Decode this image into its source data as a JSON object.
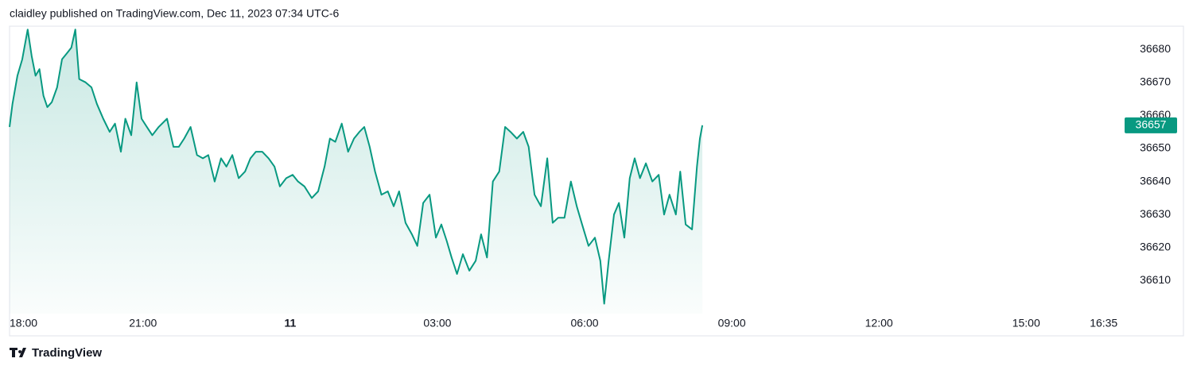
{
  "header": "claidley published on TradingView.com, Dec 11, 2023 07:34 UTC-6",
  "footer": "TradingView",
  "chart_data": {
    "type": "area",
    "color": "#089981",
    "x": [
      0.28,
      0.34,
      0.44,
      0.54,
      0.65,
      0.73,
      0.81,
      0.89,
      0.97,
      1.05,
      1.14,
      1.25,
      1.35,
      1.46,
      1.54,
      1.62,
      1.7,
      1.83,
      1.95,
      2.06,
      2.19,
      2.32,
      2.43,
      2.55,
      2.64,
      2.76,
      2.87,
      2.97,
      3.08,
      3.19,
      3.32,
      3.49,
      3.62,
      3.73,
      3.84,
      3.97,
      4.1,
      4.22,
      4.33,
      4.46,
      4.59,
      4.7,
      4.82,
      4.95,
      5.08,
      5.19,
      5.3,
      5.43,
      5.56,
      5.68,
      5.79,
      5.92,
      6.05,
      6.16,
      6.29,
      6.44,
      6.57,
      6.7,
      6.81,
      6.92,
      7.05,
      7.18,
      7.3,
      7.41,
      7.51,
      7.62,
      7.73,
      7.86,
      7.99,
      8.11,
      8.22,
      8.35,
      8.48,
      8.59,
      8.71,
      8.84,
      8.97,
      9.08,
      9.19,
      9.29,
      9.4,
      9.52,
      9.65,
      9.78,
      9.89,
      10.01,
      10.13,
      10.26,
      10.38,
      10.49,
      10.62,
      10.75,
      10.86,
      10.98,
      11.11,
      11.24,
      11.35,
      11.46,
      11.59,
      11.72,
      11.84,
      11.95,
      12.08,
      12.21,
      12.32,
      12.4,
      12.49,
      12.6,
      12.7,
      12.81,
      12.92,
      13.02,
      13.13,
      13.25,
      13.38,
      13.51,
      13.62,
      13.73,
      13.86,
      13.95,
      14.06,
      14.19,
      14.29,
      14.35,
      14.4
    ],
    "values": [
      36656.5,
      36663.5,
      36672,
      36677,
      36686,
      36678,
      36672,
      36674,
      36666,
      36662.5,
      36664,
      36668.5,
      36677,
      36679,
      36680.5,
      36686,
      36671,
      36670,
      36668.5,
      36663.5,
      36659,
      36655,
      36657.5,
      36649,
      36659,
      36654,
      36670,
      36659,
      36656.5,
      36654,
      36656.5,
      36659,
      36650.5,
      36650.5,
      36653,
      36656.5,
      36648,
      36647,
      36648,
      36640,
      36647,
      36644.5,
      36648,
      36641,
      36643,
      36647,
      36649,
      36649,
      36647,
      36644.5,
      36638.5,
      36641,
      36642,
      36640,
      36638.5,
      36635,
      36637,
      36644.5,
      36653,
      36652,
      36657.5,
      36649,
      36653,
      36655,
      36656.5,
      36650.5,
      36643,
      36636,
      36637,
      36632.5,
      36637,
      36627.5,
      36624,
      36620.5,
      36633.5,
      36636,
      36623,
      36627,
      36622,
      36617,
      36612,
      36618,
      36613,
      36616,
      36624,
      36617,
      36640,
      36643,
      36656.5,
      36655,
      36653,
      36655,
      36650.5,
      36636,
      36632.5,
      36647,
      36627.5,
      36629,
      36629,
      36640,
      36632.5,
      36627,
      36620.5,
      36623,
      36616,
      36603,
      36616,
      36630,
      36633.5,
      36623,
      36641,
      36647,
      36641,
      36645.5,
      36640,
      36642,
      36630,
      36636,
      36630,
      36643,
      36627,
      36625.5,
      36644.5,
      36653,
      36657
    ],
    "last_price": 36657,
    "xlim": [
      0.28,
      22.86
    ],
    "xticks": [
      {
        "value": 0,
        "label": "18:00"
      },
      {
        "value": 3,
        "label": "21:00"
      },
      {
        "value": 6,
        "label": "11"
      },
      {
        "value": 9,
        "label": "03:00"
      },
      {
        "value": 12,
        "label": "06:00"
      },
      {
        "value": 15,
        "label": "09:00"
      },
      {
        "value": 18,
        "label": "12:00"
      },
      {
        "value": 21,
        "label": "15:00"
      },
      {
        "value": 22.58,
        "label": "16:35"
      }
    ],
    "ylim": [
      36600,
      36687
    ],
    "yticks": [
      36610,
      36620,
      36630,
      36640,
      36650,
      36660,
      36670,
      36680
    ]
  }
}
